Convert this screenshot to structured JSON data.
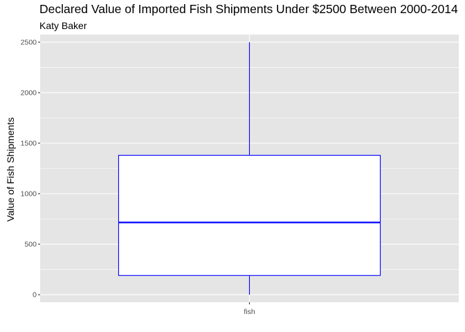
{
  "chart_data": {
    "type": "boxplot",
    "title": "Declared Value of Imported Fish Shipments Under $2500 Between 2000-2014",
    "subtitle": "Katy Baker",
    "xlabel": "",
    "ylabel": "Value of Fish Shipments",
    "categories": [
      "fish"
    ],
    "boxes": [
      {
        "category": "fish",
        "min": 0,
        "q1": 190,
        "median": 715,
        "q3": 1380,
        "max": 2500
      }
    ],
    "ylim": [
      -75,
      2575
    ],
    "yticks": [
      0,
      500,
      1000,
      1500,
      2000,
      2500
    ],
    "grid": true,
    "colors": {
      "panel": "#e5e5e5",
      "grid": "#ffffff",
      "box_line": "#0000ff",
      "box_fill": "#ffffff"
    }
  }
}
